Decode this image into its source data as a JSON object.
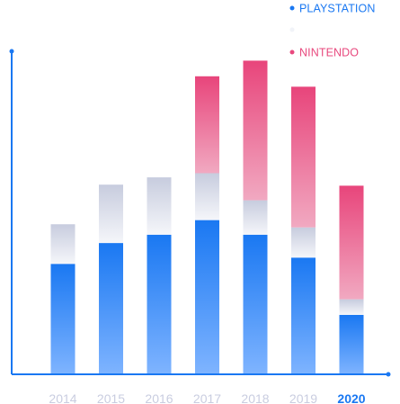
{
  "chart_data": {
    "type": "bar",
    "stacked": true,
    "categories": [
      "2014",
      "2015",
      "2016",
      "2017",
      "2018",
      "2019",
      "2020"
    ],
    "highlighted_category": "2020",
    "series": [
      {
        "name": "PLAYSTATION",
        "values": [
          106,
          126,
          134,
          148,
          134,
          112,
          57
        ],
        "color": "#1a78f2"
      },
      {
        "name": "",
        "values": [
          38,
          56,
          55,
          45,
          33,
          29,
          15
        ],
        "color": "#c9cde0"
      },
      {
        "name": "NINTENDO",
        "values": [
          0,
          0,
          0,
          93,
          134,
          135,
          109
        ],
        "color": "#e8497e"
      }
    ],
    "ylim": [
      0,
      310
    ],
    "grid": false,
    "legend_position": "top-right",
    "axis_color": "#1a78f2",
    "tick_color": "#c9cde0",
    "highlight_tick_color": "#1a78f2"
  }
}
